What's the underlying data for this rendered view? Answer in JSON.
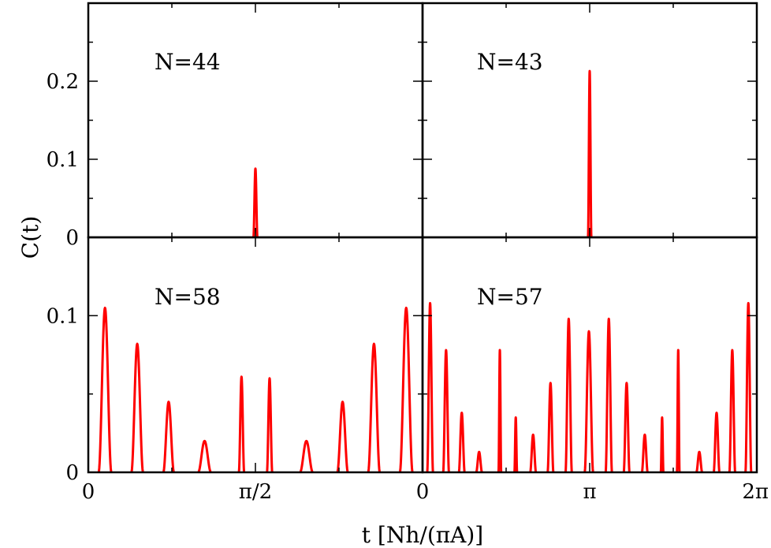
{
  "ylabel": "C(t)",
  "xlabel": "t [Nh/(πA)]",
  "colors": {
    "curve": "#ff0000",
    "axes": "#000000"
  },
  "left_x_ticks": [
    "0",
    "π/2"
  ],
  "right_x_ticks": [
    "0",
    "π",
    "2π"
  ],
  "top_y_ticks": [
    "0",
    "0.1",
    "0.2"
  ],
  "bottom_y_ticks": [
    "0",
    "0.1"
  ],
  "chart_data": [
    {
      "type": "line",
      "panel": "top-left",
      "label": "N=44",
      "xlim": [
        0,
        3.14159
      ],
      "ylim": [
        0,
        0.3
      ],
      "peaks": [
        {
          "x": 1.5708,
          "height": 0.088,
          "halfwidth": 0.019
        }
      ]
    },
    {
      "type": "line",
      "panel": "top-right",
      "label": "N=43",
      "xlim": [
        0,
        6.28319
      ],
      "ylim": [
        0,
        0.3
      ],
      "peaks": [
        {
          "x": 3.1416,
          "height": 0.213,
          "halfwidth": 0.032
        }
      ]
    },
    {
      "type": "line",
      "panel": "bottom-left",
      "label": "N=58",
      "xlim": [
        0,
        3.14159
      ],
      "ylim": [
        0,
        0.15
      ],
      "peaks": [
        {
          "x": 0.157,
          "height": 0.105,
          "halfwidth": 0.06
        },
        {
          "x": 0.46,
          "height": 0.082,
          "halfwidth": 0.055
        },
        {
          "x": 0.755,
          "height": 0.045,
          "halfwidth": 0.05
        },
        {
          "x": 1.093,
          "height": 0.02,
          "halfwidth": 0.06
        },
        {
          "x": 1.44,
          "height": 0.061,
          "halfwidth": 0.025
        },
        {
          "x": 1.704,
          "height": 0.06,
          "halfwidth": 0.025
        },
        {
          "x": 2.05,
          "height": 0.02,
          "halfwidth": 0.06
        },
        {
          "x": 2.39,
          "height": 0.045,
          "halfwidth": 0.05
        },
        {
          "x": 2.685,
          "height": 0.082,
          "halfwidth": 0.055
        },
        {
          "x": 2.988,
          "height": 0.105,
          "halfwidth": 0.06
        }
      ]
    },
    {
      "type": "line",
      "panel": "bottom-right",
      "label": "N=57",
      "xlim": [
        0,
        6.28319
      ],
      "ylim": [
        0,
        0.15
      ],
      "peaks": [
        {
          "x": 0.142,
          "height": 0.108,
          "halfwidth": 0.055
        },
        {
          "x": 0.442,
          "height": 0.078,
          "halfwidth": 0.055
        },
        {
          "x": 0.737,
          "height": 0.038,
          "halfwidth": 0.055
        },
        {
          "x": 1.063,
          "height": 0.013,
          "halfwidth": 0.055
        },
        {
          "x": 1.453,
          "height": 0.078,
          "halfwidth": 0.025
        },
        {
          "x": 1.752,
          "height": 0.035,
          "halfwidth": 0.025
        },
        {
          "x": 2.078,
          "height": 0.024,
          "halfwidth": 0.055
        },
        {
          "x": 2.405,
          "height": 0.057,
          "halfwidth": 0.055
        },
        {
          "x": 2.747,
          "height": 0.098,
          "halfwidth": 0.06
        },
        {
          "x": 3.127,
          "height": 0.09,
          "halfwidth": 0.08
        },
        {
          "x": 3.501,
          "height": 0.098,
          "halfwidth": 0.06
        },
        {
          "x": 3.836,
          "height": 0.057,
          "halfwidth": 0.055
        },
        {
          "x": 4.177,
          "height": 0.024,
          "halfwidth": 0.055
        },
        {
          "x": 4.503,
          "height": 0.035,
          "halfwidth": 0.025
        },
        {
          "x": 4.806,
          "height": 0.078,
          "halfwidth": 0.025
        },
        {
          "x": 5.202,
          "height": 0.013,
          "halfwidth": 0.055
        },
        {
          "x": 5.527,
          "height": 0.038,
          "halfwidth": 0.055
        },
        {
          "x": 5.822,
          "height": 0.078,
          "halfwidth": 0.055
        },
        {
          "x": 6.124,
          "height": 0.108,
          "halfwidth": 0.055
        }
      ]
    }
  ]
}
